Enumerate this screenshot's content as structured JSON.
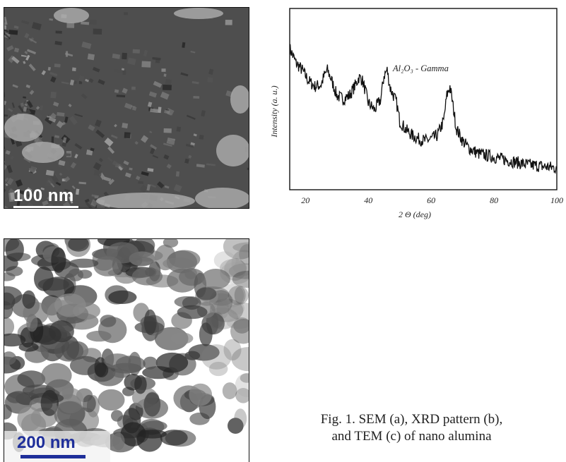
{
  "panels": {
    "sem": {
      "scale_label": "100 nm"
    },
    "tem": {
      "scale_label": "200 nm"
    }
  },
  "chart_data": {
    "type": "line",
    "title": "Al₂O₃ - Gamma",
    "xlabel": "2 Θ  (deg)",
    "ylabel": "Intensity (a. u.)",
    "xlim": [
      15,
      100
    ],
    "xticks": [
      "20",
      "40",
      "60",
      "80",
      "100"
    ],
    "grid": false,
    "series": [
      {
        "x": [
          15,
          17,
          19,
          21,
          23,
          25,
          26,
          27,
          28,
          29,
          30,
          32,
          34,
          36,
          37,
          38,
          39,
          40,
          42,
          44,
          45,
          46,
          47,
          48,
          49,
          50,
          52,
          54,
          56,
          58,
          60,
          62,
          64,
          65,
          66,
          67,
          68,
          70,
          72,
          75,
          80,
          85,
          90,
          95,
          100
        ],
        "y": [
          0.78,
          0.7,
          0.66,
          0.6,
          0.57,
          0.58,
          0.63,
          0.66,
          0.62,
          0.57,
          0.52,
          0.5,
          0.52,
          0.58,
          0.62,
          0.61,
          0.55,
          0.48,
          0.44,
          0.5,
          0.63,
          0.66,
          0.56,
          0.52,
          0.48,
          0.38,
          0.33,
          0.3,
          0.28,
          0.27,
          0.28,
          0.3,
          0.38,
          0.52,
          0.57,
          0.46,
          0.34,
          0.27,
          0.23,
          0.2,
          0.18,
          0.16,
          0.14,
          0.13,
          0.12
        ]
      }
    ]
  },
  "caption": {
    "line1": "Fig. 1. SEM (a), XRD pattern (b),",
    "line2": "and TEM (c) of nano alumina"
  }
}
